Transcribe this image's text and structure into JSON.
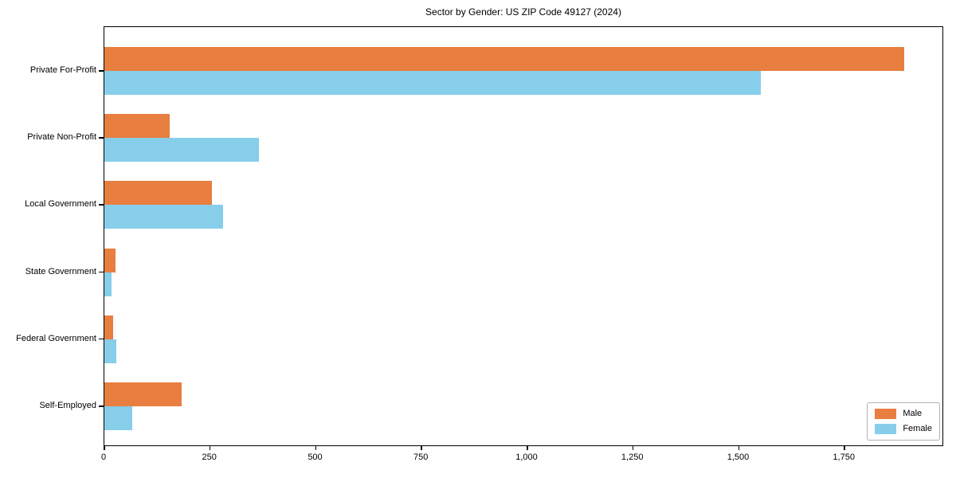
{
  "chart_data": {
    "type": "bar",
    "orientation": "horizontal",
    "title": "Sector by Gender: US ZIP Code 49127 (2024)",
    "categories": [
      "Private For-Profit",
      "Private Non-Profit",
      "Local Government",
      "State Government",
      "Federal Government",
      "Self-Employed"
    ],
    "series": [
      {
        "name": "Male",
        "color": "#e87e40",
        "values": [
          1890,
          154,
          254,
          27,
          20,
          182
        ]
      },
      {
        "name": "Female",
        "color": "#87ceeb",
        "values": [
          1551,
          365,
          281,
          16,
          29,
          66
        ]
      }
    ],
    "xlabel": "",
    "ylabel": "",
    "xlim": [
      0,
      1985
    ],
    "xticks": [
      0,
      250,
      500,
      750,
      1000,
      1250,
      1500,
      1750
    ],
    "xtick_labels": [
      "0",
      "250",
      "500",
      "750",
      "1,000",
      "1,250",
      "1,500",
      "1,750"
    ],
    "grid": false,
    "legend_position": "lower right",
    "colors": {
      "plot_border": "#000000",
      "background": "#ffffff",
      "legend_border": "#b3b3b3"
    }
  }
}
